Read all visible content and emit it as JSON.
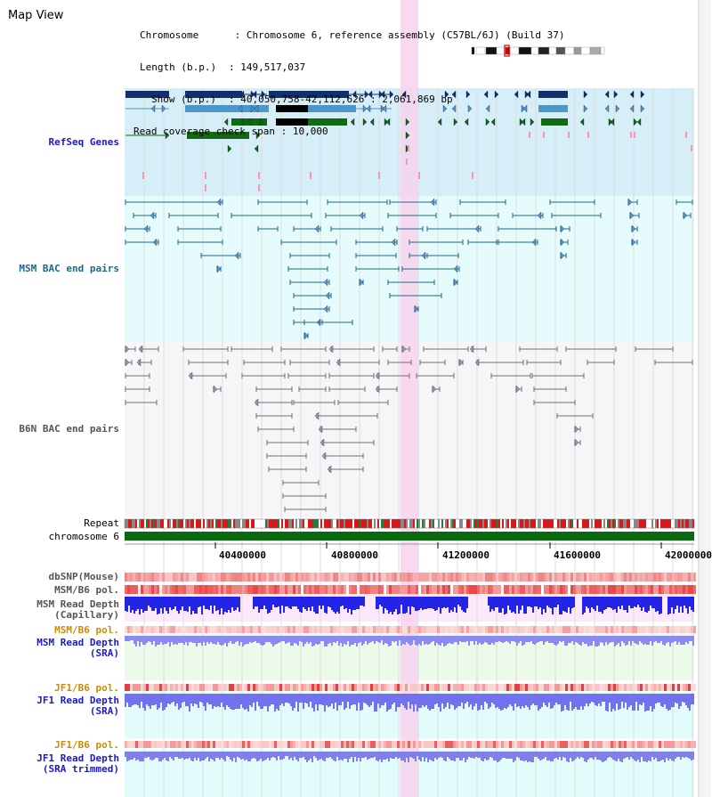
{
  "app": {
    "title": "Map View"
  },
  "info": {
    "chromosome_key": "Chromosome",
    "chromosome_val": "Chromosome 6, reference assembly (C57BL/6J) (Build 37)",
    "length_key": "Length (b.p.)",
    "length_val": "149,517,037",
    "show_key": "Show (b.p.)",
    "show_val": "40,050,758-42,112,626 : 2,061,869 bp",
    "span_key": "Read coverage check span",
    "span_val": "10,000"
  },
  "tracks": {
    "refseq": "RefSeq Genes",
    "msm_bac": "MSM BAC end pairs",
    "b6n_bac": "B6N BAC end pairs",
    "repeat": "Repeat",
    "chromosome": "chromosome 6",
    "dbsnp": "dbSNP(Mouse)",
    "msm_pol": "MSM/B6 pol.",
    "msm_depth_cap_1": "MSM Read Depth",
    "msm_depth_cap_2": "(Capillary)",
    "msm_pol2": "MSM/B6 pol.",
    "msm_depth_sra_1": "MSM Read Depth",
    "msm_depth_sra_2": "(SRA)",
    "jf1_pol": "JF1/B6 pol.",
    "jf1_depth_sra_1": "JF1 Read Depth",
    "jf1_depth_sra_2": "(SRA)",
    "jf1_pol2": "JF1/B6 pol.",
    "jf1_depth_trim_1": "JF1 Read Depth",
    "jf1_depth_trim_2": "(SRA trimmed)"
  },
  "axis": {
    "ticks": [
      "40400000",
      "40800000",
      "41200000",
      "41600000",
      "42000000"
    ]
  },
  "colors": {
    "refseq_bg": "#d6eef8",
    "msm_bg": "#e6fbfb",
    "b6n_bg": "#f6f6f8",
    "highlight": "#f7d2ee",
    "refseq_dark": "#13306a",
    "refseq_mid": "#4d97c8",
    "refseq_green": "#0f6a12",
    "msm_line": "#1e6a8a",
    "b6n_line": "#707070",
    "msm_label": "#1a6a8a",
    "blue_label": "#1a1acc",
    "orange_label": "#d28a00",
    "chrom_green": "#0b6a10"
  }
}
